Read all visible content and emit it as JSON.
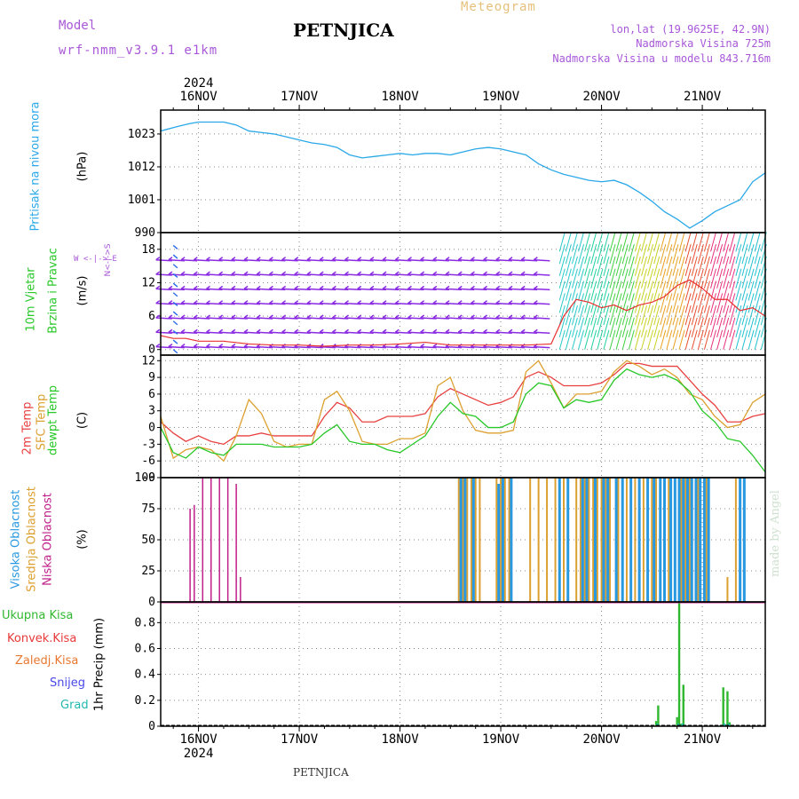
{
  "header": {
    "title": "PETNJICA",
    "meteogram": "Meteogram",
    "model_label": "Model",
    "model": "wrf-nmm_v3.9.1 e1km",
    "location": "lon,lat (19.9625E, 42.9N)",
    "elevation": "Nadmorska Visina 725m",
    "model_elevation": "Nadmorska Visina u modelu 843.716m"
  },
  "footer": {
    "name": "PETNJICA",
    "credit": "made by Angel"
  },
  "time_axis": {
    "year": "2024",
    "days": [
      "16NOV",
      "17NOV",
      "18NOV",
      "19NOV",
      "20NOV",
      "21NOV"
    ],
    "start_hour": -9,
    "end_hour": 135
  },
  "panels": {
    "pressure": {
      "label": "Pritisak na nivou mora",
      "unit": "(hPa)",
      "color": "#2aa8e8"
    },
    "wind": {
      "label_a": "10m Vjetar",
      "label_b": "Brzina i Pravac",
      "unit": "(m/s)",
      "compass": "W <-|-> E",
      "ns": "N<-|->S"
    },
    "temp": {
      "labels": [
        "2m Temp",
        "SFC Temp",
        "dewpt Temp"
      ],
      "unit": "(C)"
    },
    "cloud": {
      "labels": [
        "Visoka Oblacnost",
        "Srednja Oblacnost",
        "Niska Oblacnost"
      ],
      "unit": "(%)"
    },
    "precip": {
      "legend": [
        "Ukupna Kisa",
        "Konvek.Kisa",
        "Zaledj.Kisa",
        "Snijeg",
        "Grad"
      ],
      "ylabel": "1hr Precip (mm)"
    }
  },
  "colors": {
    "pressure": "#2aa8e8",
    "wind_speed": "#e83030",
    "wind_barb": "#8a2be2",
    "temp2m": "#e84040",
    "sfc": "#dca030",
    "dewpt": "#28c828",
    "cloud_high": "#2898e0",
    "cloud_mid": "#dca030",
    "cloud_low": "#c0208a",
    "rain_total": "#30b830",
    "rain_conv": "#e83838",
    "rain_frz": "#e87830",
    "snow": "#4848e8",
    "hail": "#20b8b0"
  },
  "chart_data": [
    {
      "type": "line",
      "title": "",
      "ylabel": "Pritisak na nivou mora (hPa)",
      "yticks": [
        990,
        1001,
        1012,
        1023
      ],
      "ylim": [
        990,
        1031
      ],
      "x_hours": [
        -9,
        -5,
        -2,
        0,
        3,
        6,
        9,
        12,
        15,
        18,
        21,
        24,
        27,
        30,
        33,
        36,
        39,
        42,
        45,
        48,
        51,
        54,
        57,
        60,
        63,
        66,
        69,
        72,
        75,
        78,
        81,
        84,
        87,
        90,
        93,
        96,
        99,
        102,
        105,
        108,
        111,
        114,
        117,
        120,
        123,
        126,
        129,
        132,
        135
      ],
      "series": [
        {
          "name": "Pritisak",
          "values": [
            1024.0,
            1025.5,
            1026.5,
            1027.0,
            1027.0,
            1027.0,
            1026.0,
            1024.0,
            1023.5,
            1023.0,
            1022.0,
            1021.0,
            1020.0,
            1019.5,
            1018.5,
            1016.0,
            1015.0,
            1015.5,
            1016.0,
            1016.5,
            1016.0,
            1016.5,
            1016.5,
            1016.0,
            1017.0,
            1018.0,
            1018.5,
            1018.0,
            1017.0,
            1016.0,
            1013.0,
            1011.0,
            1009.5,
            1008.5,
            1007.5,
            1007.0,
            1007.5,
            1006.0,
            1003.5,
            1000.5,
            997.0,
            994.5,
            991.5,
            994.0,
            997.0,
            999.0,
            1001.0,
            1007.0,
            1010.0
          ]
        }
      ]
    },
    {
      "type": "line",
      "title": "",
      "ylabel": "10m Vjetar Brzina i Pravac (m/s)",
      "yticks": [
        0,
        6,
        12,
        18
      ],
      "ylim": [
        -1,
        21
      ],
      "x_hours": [
        -9,
        -6,
        -3,
        0,
        6,
        12,
        18,
        24,
        30,
        36,
        42,
        48,
        54,
        60,
        66,
        72,
        78,
        84,
        87,
        90,
        93,
        96,
        99,
        102,
        105,
        108,
        111,
        114,
        117,
        120,
        123,
        126,
        129,
        132,
        135
      ],
      "series": [
        {
          "name": "Brzina",
          "values": [
            2.5,
            2.0,
            2.0,
            1.5,
            1.5,
            1.0,
            0.8,
            0.8,
            0.6,
            0.8,
            0.8,
            1.0,
            1.3,
            0.8,
            0.8,
            0.8,
            0.8,
            1.0,
            6.0,
            9.0,
            8.5,
            7.5,
            8.0,
            7.0,
            8.0,
            8.5,
            9.5,
            11.5,
            12.5,
            11.0,
            9.0,
            9.0,
            7.0,
            7.5,
            6.0
          ]
        }
      ]
    },
    {
      "type": "line",
      "title": "",
      "ylabel": "(C)",
      "yticks": [
        -9,
        -6,
        -3,
        0,
        3,
        6,
        9,
        12
      ],
      "ylim": [
        -9,
        13
      ],
      "x_hours": [
        -9,
        -6,
        -3,
        0,
        3,
        6,
        9,
        12,
        15,
        18,
        21,
        24,
        27,
        30,
        33,
        36,
        39,
        42,
        45,
        48,
        51,
        54,
        57,
        60,
        63,
        66,
        69,
        72,
        75,
        78,
        81,
        84,
        87,
        90,
        93,
        96,
        99,
        102,
        105,
        108,
        111,
        114,
        117,
        120,
        123,
        126,
        129,
        132,
        135
      ],
      "series": [
        {
          "name": "2m Temp",
          "values": [
            1.0,
            -1.0,
            -2.5,
            -1.5,
            -2.5,
            -3.0,
            -1.5,
            -1.5,
            -1.0,
            -1.5,
            -1.5,
            -1.5,
            -1.5,
            2.0,
            4.5,
            3.5,
            1.0,
            1.0,
            2.0,
            2.0,
            2.0,
            2.5,
            5.5,
            7.0,
            6.0,
            5.0,
            4.0,
            4.5,
            5.5,
            9.0,
            10.0,
            9.0,
            7.5,
            7.5,
            7.5,
            8.0,
            9.5,
            11.5,
            11.5,
            11.0,
            11.0,
            11.0,
            8.5,
            6.0,
            4.0,
            1.0,
            1.0,
            2.0,
            2.5
          ]
        },
        {
          "name": "SFC Temp",
          "values": [
            2.0,
            -5.5,
            -4.0,
            -3.5,
            -4.0,
            -6.0,
            -1.5,
            5.0,
            2.5,
            -2.5,
            -3.5,
            -3.0,
            -3.0,
            5.0,
            6.5,
            3.0,
            -2.5,
            -3.0,
            -3.0,
            -2.0,
            -2.0,
            -1.0,
            7.5,
            9.0,
            3.0,
            -0.5,
            -1.0,
            -1.0,
            -0.5,
            10.0,
            12.0,
            8.0,
            3.5,
            6.0,
            6.0,
            6.5,
            10.0,
            12.0,
            11.0,
            9.5,
            10.5,
            9.0,
            6.0,
            5.0,
            2.0,
            0.0,
            0.5,
            4.5,
            6.0
          ]
        },
        {
          "name": "dewpt Temp",
          "values": [
            0.0,
            -4.5,
            -5.5,
            -3.5,
            -4.5,
            -5.0,
            -3.0,
            -3.0,
            -3.0,
            -3.5,
            -3.5,
            -3.5,
            -3.0,
            -1.0,
            0.5,
            -2.5,
            -3.0,
            -3.0,
            -4.0,
            -4.5,
            -3.0,
            -1.5,
            2.0,
            4.5,
            2.5,
            2.0,
            0.0,
            0.0,
            1.0,
            6.0,
            8.0,
            7.5,
            3.5,
            5.0,
            4.5,
            5.0,
            8.5,
            10.5,
            9.5,
            9.0,
            9.5,
            8.5,
            6.5,
            3.0,
            1.0,
            -2.0,
            -2.5,
            -5.0,
            -8.0
          ]
        }
      ]
    },
    {
      "type": "bar",
      "title": "",
      "ylabel": "Oblacnost (%)",
      "yticks": [
        0,
        25,
        50,
        75,
        100
      ],
      "ylim": [
        0,
        100
      ],
      "series": [
        {
          "name": "Niska Oblacnost",
          "x_hours": [
            -2,
            -1,
            1,
            3,
            5,
            7,
            9,
            10
          ],
          "values": [
            75,
            78,
            100,
            100,
            100,
            100,
            95,
            20
          ]
        },
        {
          "name": "Srednja Oblacnost",
          "x_hours": [
            62,
            63,
            64,
            65,
            66,
            67,
            71,
            72,
            73,
            74,
            79,
            81,
            83,
            85,
            87,
            90,
            91,
            92,
            93,
            94,
            95,
            96,
            97,
            98,
            100,
            102,
            104,
            106,
            108,
            109,
            112,
            115,
            116,
            117,
            119,
            121,
            126,
            128
          ],
          "values": [
            100,
            100,
            100,
            100,
            100,
            100,
            100,
            100,
            100,
            100,
            100,
            100,
            100,
            100,
            100,
            100,
            100,
            100,
            100,
            100,
            100,
            100,
            100,
            100,
            100,
            100,
            100,
            100,
            100,
            100,
            100,
            100,
            100,
            100,
            100,
            100,
            20,
            100
          ]
        },
        {
          "name": "Visoka Oblacnost",
          "x_hours": [
            62.5,
            63.5,
            65.5,
            71.5,
            72.5,
            74.5,
            86,
            88,
            91.5,
            92.5,
            94.5,
            96.5,
            97.5,
            99.5,
            101,
            103,
            105,
            107,
            108.5,
            110,
            111,
            112.5,
            113.5,
            114.5,
            115.5,
            116.5,
            117.5,
            118.5,
            119.5,
            120.5,
            121.5,
            129,
            130
          ],
          "values": [
            100,
            100,
            100,
            95,
            100,
            100,
            100,
            100,
            100,
            100,
            100,
            100,
            100,
            100,
            100,
            100,
            100,
            100,
            100,
            100,
            100,
            100,
            100,
            100,
            100,
            100,
            100,
            100,
            100,
            100,
            100,
            100,
            100
          ]
        }
      ]
    },
    {
      "type": "bar",
      "title": "",
      "ylabel": "1hr Precip (mm)",
      "yticks": [
        0,
        0.2,
        0.4,
        0.6,
        0.8
      ],
      "ylim": [
        0,
        0.96
      ],
      "series": [
        {
          "name": "Ukupna Kisa",
          "x_hours": [
            109,
            109.5,
            114,
            114.5,
            115,
            115.5,
            125,
            126,
            126.5
          ],
          "values": [
            0.04,
            0.16,
            0.07,
            0.95,
            0.02,
            0.32,
            0.3,
            0.27,
            0.03
          ]
        },
        {
          "name": "Grad",
          "x_hours": [
            109.3,
            114.3,
            115.3,
            125.3,
            126.3
          ],
          "values": [
            0.02,
            0.02,
            0.02,
            0.02,
            0.02
          ]
        }
      ]
    }
  ]
}
